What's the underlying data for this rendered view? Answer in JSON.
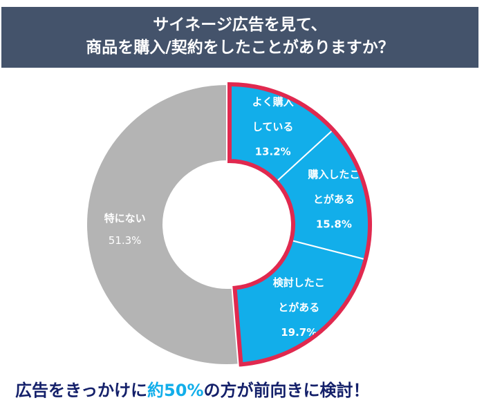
{
  "title": {
    "line1": "サイネージ広告を見て、",
    "line2": "商品を購入/契約をしたことがありますか？"
  },
  "chart_data": {
    "type": "pie",
    "donut": true,
    "slices": [
      {
        "label_line1": "よく購入",
        "label_line2": "している",
        "value": 13.2,
        "value_label": "13.2%",
        "color": "#12aeea"
      },
      {
        "label_line1": "購入したこ",
        "label_line2": "とがある",
        "value": 15.8,
        "value_label": "15.8%",
        "color": "#12aeea"
      },
      {
        "label_line1": "検討したこ",
        "label_line2": "とがある",
        "value": 19.7,
        "value_label": "19.7%",
        "color": "#12aeea"
      },
      {
        "label_line1": "特にない",
        "label_line2": "",
        "value": 51.3,
        "value_label": "51.3%",
        "color": "#b4b4b4"
      }
    ],
    "highlight_border_color": "#e0294f"
  },
  "footer": {
    "part1": "広告をきっかけに",
    "highlight": "約50%",
    "part2": "の方が前向きに検討！"
  }
}
